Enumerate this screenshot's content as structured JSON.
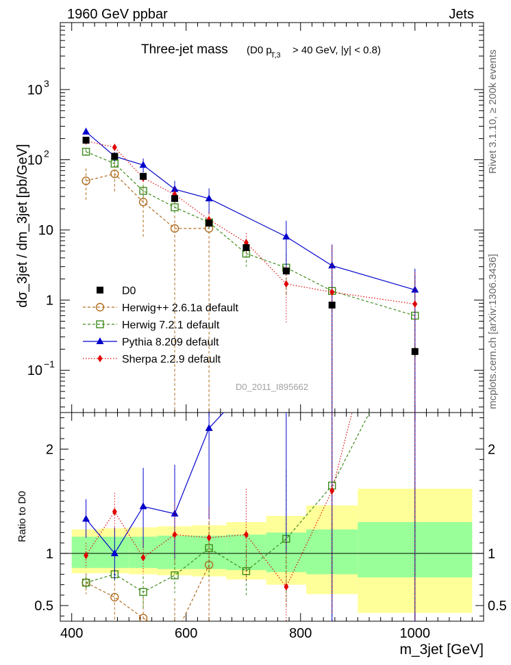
{
  "header": {
    "energy_label": "1960 GeV ppbar",
    "category_label": "Jets"
  },
  "side_labels": {
    "rivet": "Rivet 3.1.10, ≥ 200k events",
    "mcplots": "mcplots.cern.ch [arXiv:1306.3436]"
  },
  "chart_data": {
    "type": "line",
    "title_main": "Three-jet mass",
    "title_cut_prefix": "(D0 p",
    "title_cut_sub": "T,3",
    "title_cut_suffix": "> 40 GeV, |y| < 0.8)",
    "analysis_id": "D0_2011_I895662",
    "xlabel": "m_3jet [GeV]",
    "ylabel": "dσ_3jet / dm_3jet [pb/GeV]",
    "ratio_ylabel": "Ratio to D0",
    "xlim": [
      380,
      1120
    ],
    "ylim": [
      0.025,
      9000
    ],
    "ratio_ylim": [
      0.35,
      2.35
    ],
    "x_ticks": [
      400,
      600,
      800,
      1000
    ],
    "x_tick_labels": [
      "400",
      "600",
      "800",
      "1000"
    ],
    "y_ticks": [
      {
        "value": 0.1,
        "base": "10",
        "exp": "−1"
      },
      {
        "value": 1,
        "base": "1",
        "exp": ""
      },
      {
        "value": 10,
        "base": "10",
        "exp": ""
      },
      {
        "value": 100,
        "base": "10",
        "exp": "2"
      },
      {
        "value": 1000,
        "base": "10",
        "exp": "3"
      }
    ],
    "ratio_ticks": [
      {
        "value": 0.5,
        "label": "0.5"
      },
      {
        "value": 1,
        "label": "1"
      },
      {
        "value": 2,
        "label": "2"
      }
    ],
    "bin_edges": [
      400,
      450,
      500,
      550,
      610,
      670,
      740,
      810,
      900,
      1100
    ],
    "band_inner": [
      [
        0.86,
        1.16
      ],
      [
        0.86,
        1.16
      ],
      [
        0.86,
        1.16
      ],
      [
        0.85,
        1.17
      ],
      [
        0.85,
        1.17
      ],
      [
        0.84,
        1.18
      ],
      [
        0.82,
        1.2
      ],
      [
        0.8,
        1.23
      ],
      [
        0.77,
        1.3
      ]
    ],
    "band_outer": [
      [
        0.81,
        1.23
      ],
      [
        0.81,
        1.24
      ],
      [
        0.8,
        1.25
      ],
      [
        0.79,
        1.26
      ],
      [
        0.78,
        1.27
      ],
      [
        0.75,
        1.3
      ],
      [
        0.7,
        1.36
      ],
      [
        0.61,
        1.46
      ],
      [
        0.43,
        1.62
      ]
    ],
    "data": {
      "name": "D0",
      "x": [
        425,
        475,
        525,
        580,
        640,
        705,
        775,
        855,
        1000
      ],
      "y": [
        190,
        112,
        58,
        28,
        12.5,
        5.6,
        2.6,
        0.85,
        0.185
      ],
      "yerr_lo": [
        10,
        6,
        3,
        1.5,
        0.8,
        0.4,
        0.25,
        0.1,
        0.03
      ],
      "yerr_hi": [
        10,
        6,
        3,
        1.5,
        0.8,
        0.4,
        0.25,
        0.1,
        0.03
      ]
    },
    "series": [
      {
        "name": "Herwig++ 2.6.1a default",
        "color": "#b06a1e",
        "marker": "circle",
        "dash": "4,3",
        "x": [
          425,
          475,
          525,
          580,
          640
        ],
        "y": [
          50,
          63,
          25,
          10.5,
          10.5
        ],
        "ylo": [
          25,
          35,
          7.5,
          0.001,
          0.001
        ],
        "yhi": [
          75,
          85,
          42,
          16,
          18
        ],
        "ratio": [
          0.72,
          0.58,
          0.38,
          0.2,
          0.89
        ],
        "ratio_lo": [
          0.61,
          0.35,
          0.05,
          0.01,
          0.01
        ],
        "ratio_hi": [
          0.81,
          0.76,
          0.58,
          0.57,
          0.0
        ]
      },
      {
        "name": "Herwig 7.2.1 default",
        "color": "#3d8a1a",
        "marker": "square",
        "dash": "4,3",
        "x": [
          425,
          475,
          525,
          580,
          640,
          705,
          775,
          855,
          1000
        ],
        "y": [
          130,
          88,
          36,
          21,
          12.8,
          4.6,
          2.9,
          1.35,
          0.6
        ],
        "ylo": [
          118,
          78,
          27,
          17,
          10,
          3.0,
          1.2,
          0.001,
          0.001
        ],
        "yhi": [
          142,
          98,
          44,
          26,
          15.5,
          6.0,
          4.6,
          3.5,
          2.2
        ],
        "ratio": [
          0.72,
          0.8,
          0.63,
          0.79,
          1.05,
          0.83,
          1.14,
          1.65,
          3.2
        ],
        "ratio_lo": [
          0.66,
          0.74,
          0.48,
          0.62,
          0.78,
          0.6,
          0.5,
          0.01,
          0.01
        ],
        "ratio_hi": [
          0.78,
          0.86,
          0.78,
          0.96,
          1.3,
          1.08,
          1.8,
          4,
          6
        ]
      },
      {
        "name": "Pythia 8.209 default",
        "color": "#0000cc",
        "marker": "triangle",
        "dash": "",
        "x": [
          425,
          475,
          525,
          580,
          640,
          775,
          855,
          1000
        ],
        "y": [
          250,
          112,
          84,
          38,
          28,
          8,
          3.1,
          1.4
        ],
        "ylo": [
          232,
          95,
          66,
          27,
          17,
          2.5,
          0.001,
          0.001
        ],
        "yhi": [
          285,
          128,
          104,
          50,
          39,
          13.5,
          6.2,
          2.8
        ],
        "ratio": [
          1.33,
          1.0,
          1.45,
          1.38,
          2.2,
          3.0,
          3.6,
          7.5
        ],
        "ratio_lo": [
          1.15,
          0.75,
          1.05,
          0.95,
          1.33,
          1.0,
          0.01,
          0.01
        ],
        "ratio_hi": [
          1.52,
          1.25,
          1.82,
          1.85,
          3.0,
          5,
          7.3,
          15
        ]
      },
      {
        "name": "Sherpa 2.2.9 default",
        "color": "#e00000",
        "marker": "diamond",
        "dash": "1.5,2.5",
        "x": [
          425,
          475,
          525,
          580,
          640,
          705,
          775,
          855,
          1000
        ],
        "y": [
          185,
          150,
          55,
          32,
          14,
          6.6,
          1.7,
          1.3,
          0.88
        ],
        "ylo": [
          168,
          135,
          45,
          24,
          11,
          4.4,
          0.48,
          0.001,
          0.001
        ],
        "yhi": [
          202,
          165,
          65,
          40,
          17.5,
          9.0,
          3.0,
          6.0,
          2.5
        ],
        "ratio": [
          0.98,
          1.4,
          0.96,
          1.18,
          1.15,
          1.18,
          0.68,
          1.6,
          4.7
        ],
        "ratio_lo": [
          0.86,
          1.22,
          0.8,
          0.88,
          0.86,
          0.74,
          0.18,
          0.42,
          0.01
        ],
        "ratio_hi": [
          1.1,
          1.58,
          1.12,
          1.48,
          1.44,
          1.62,
          1.15,
          3.9,
          10
        ]
      }
    ]
  }
}
